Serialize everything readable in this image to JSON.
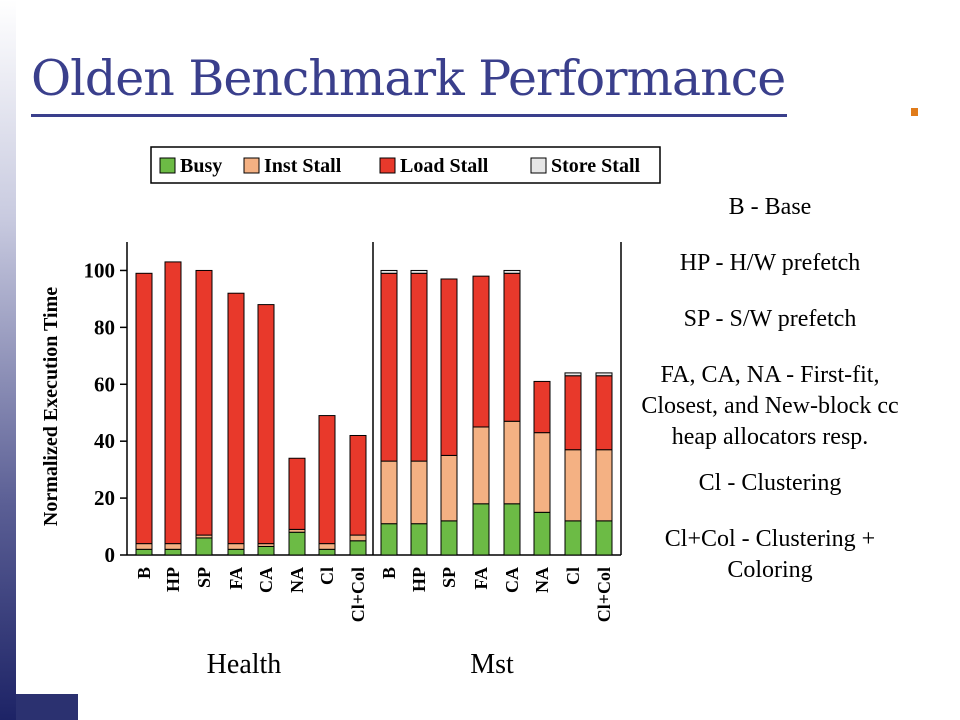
{
  "slide": {
    "title": "Olden Benchmark Performance"
  },
  "notes": [
    "B - Base",
    "HP - H/W prefetch",
    "SP - S/W prefetch",
    "FA, CA, NA - First-fit, Closest, and New-block cc heap allocators resp.",
    "Cl - Clustering",
    "Cl+Col - Clustering + Coloring"
  ],
  "colors": {
    "busy": "#6cbb45",
    "inst_stall": "#f4b183",
    "load_stall": "#e8392b",
    "store_stall": "#e6e6e6",
    "title": "#3a3f8c",
    "accent": "#e07b1a"
  },
  "chart_data": {
    "type": "bar",
    "stacked": true,
    "title": "",
    "ylabel": "Normalized Execution Time",
    "xlabel": "",
    "ylim": [
      0,
      110
    ],
    "yticks": [
      0,
      20,
      40,
      60,
      80,
      100
    ],
    "legend": {
      "placement": "top",
      "entries": [
        "Busy",
        "Inst Stall",
        "Load Stall",
        "Store Stall"
      ]
    },
    "groups": [
      {
        "name": "Health",
        "categories": [
          "B",
          "HP",
          "SP",
          "FA",
          "CA",
          "NA",
          "Cl",
          "Cl+Col"
        ],
        "series": [
          {
            "name": "Busy",
            "values": [
              2,
              2,
              6,
              2,
              3,
              8,
              2,
              5
            ]
          },
          {
            "name": "Inst Stall",
            "values": [
              2,
              2,
              1,
              2,
              1,
              1,
              2,
              2
            ]
          },
          {
            "name": "Load Stall",
            "values": [
              95,
              99,
              93,
              88,
              84,
              25,
              45,
              35
            ]
          },
          {
            "name": "Store Stall",
            "values": [
              0,
              0,
              0,
              0,
              0,
              0,
              0,
              0
            ]
          }
        ]
      },
      {
        "name": "Mst",
        "categories": [
          "B",
          "HP",
          "SP",
          "FA",
          "CA",
          "NA",
          "Cl",
          "Cl+Col"
        ],
        "series": [
          {
            "name": "Busy",
            "values": [
              11,
              11,
              12,
              18,
              18,
              15,
              12,
              12
            ]
          },
          {
            "name": "Inst Stall",
            "values": [
              22,
              22,
              23,
              27,
              29,
              28,
              25,
              25
            ]
          },
          {
            "name": "Load Stall",
            "values": [
              66,
              66,
              62,
              53,
              52,
              18,
              26,
              26
            ]
          },
          {
            "name": "Store Stall",
            "values": [
              1,
              1,
              0,
              0,
              1,
              0,
              1,
              1
            ]
          }
        ]
      }
    ]
  }
}
